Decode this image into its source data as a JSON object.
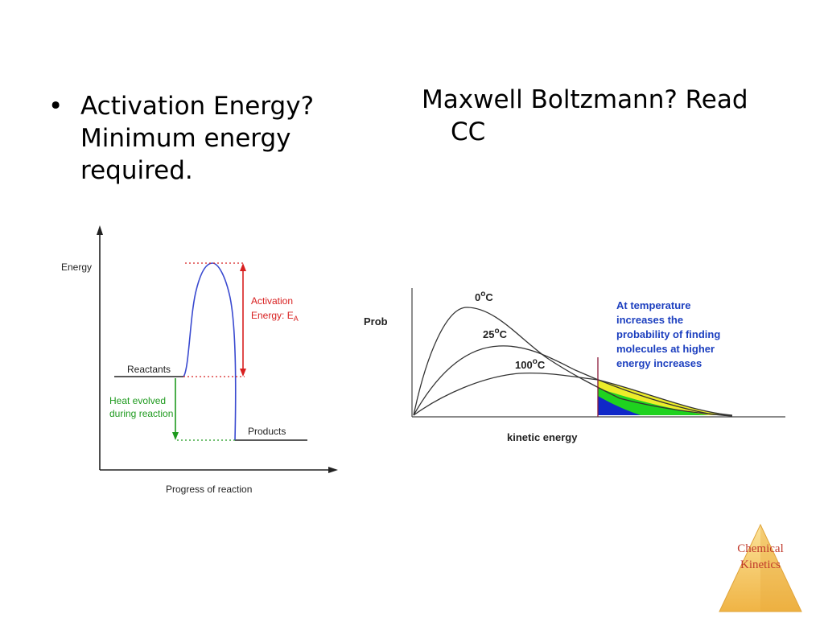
{
  "slide": {
    "left_bullet": {
      "bullet": "•",
      "lines": [
        "Activation Energy?",
        "Minimum energy",
        "required."
      ]
    },
    "right_heading": {
      "lines": [
        "Maxwell Boltzmann? Read",
        "CC"
      ]
    }
  },
  "energy_diagram": {
    "y_axis_label": "Energy",
    "x_axis_label": "Progress of reaction",
    "reactants_label": "Reactants",
    "products_label": "Products",
    "activation_label_line1": "Activation",
    "activation_label_line2": "Energy:  E",
    "activation_subscript": "A",
    "heat_label_line1": "Heat evolved",
    "heat_label_line2": "during reaction",
    "colors": {
      "curve": "#3a4ad0",
      "activation": "#d82020",
      "heat": "#1e9a1e",
      "axis": "#222222"
    }
  },
  "maxwell_boltzmann": {
    "y_axis_label": "Prob",
    "x_axis_label": "kinetic energy",
    "curve_labels": [
      "0",
      "25",
      "100"
    ],
    "degree_symbol": "o",
    "unit": "C",
    "annotation_lines": [
      "At temperature",
      "increases the",
      "probability of finding",
      "molecules at higher",
      "energy increases"
    ],
    "colors": {
      "annotation": "#1c3fbf",
      "threshold_line": "#8b1a3a",
      "fill_0C": "#1028c8",
      "fill_25C": "#1fd21f",
      "fill_100C": "#ecec2a"
    }
  },
  "logo": {
    "line1": "Chemical",
    "line2": "Kinetics",
    "colors": {
      "text": "#c0392b",
      "fill": "#f4c55a"
    }
  }
}
